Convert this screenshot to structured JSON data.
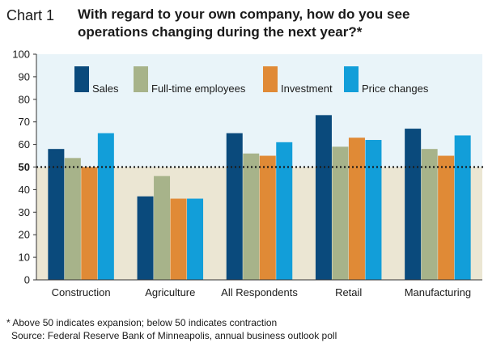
{
  "chart_label": "Chart 1",
  "chart_data": {
    "type": "bar",
    "title": "With regard to your own company, how do you see operations changing during the next year?*",
    "xlabel": "",
    "ylabel": "",
    "ylim": [
      0,
      100
    ],
    "yticks": [
      0,
      10,
      20,
      30,
      40,
      50,
      60,
      70,
      80,
      90,
      100
    ],
    "reference_line": 50,
    "categories": [
      "Construction",
      "Agriculture",
      "All Respondents",
      "Retail",
      "Manufacturing"
    ],
    "series": [
      {
        "name": "Sales",
        "color": "#0a4a7c",
        "values": [
          58,
          37,
          65,
          73,
          67
        ]
      },
      {
        "name": "Full-time employees",
        "color": "#a7b38a",
        "values": [
          54,
          46,
          56,
          59,
          58
        ]
      },
      {
        "name": "Investment",
        "color": "#e08a36",
        "values": [
          50,
          36,
          55,
          63,
          55
        ]
      },
      {
        "name": "Price changes",
        "color": "#129ed9",
        "values": [
          65,
          36,
          61,
          62,
          64
        ]
      }
    ],
    "legend_position": "top",
    "grid": false,
    "colors": {
      "background_above": "#e9f4f9",
      "background_below": "#ebe6d3",
      "reference": "#1a1a1a"
    }
  },
  "footnotes": [
    "* Above 50 indicates expansion; below 50 indicates contraction",
    "Source: Federal Reserve Bank of Minneapolis, annual business outlook poll"
  ]
}
